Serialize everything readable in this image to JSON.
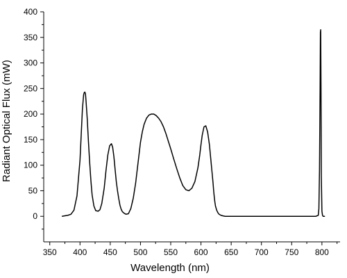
{
  "chart_data": {
    "type": "line",
    "title": "",
    "xlabel": "Wavelength (nm)",
    "ylabel": "Radiant Optical Flux (mW)",
    "xlim": [
      340,
      830
    ],
    "ylim": [
      -50,
      400
    ],
    "xticks": [
      350,
      400,
      450,
      500,
      550,
      600,
      650,
      700,
      750,
      800
    ],
    "yticks": [
      0,
      50,
      100,
      150,
      200,
      250,
      300,
      350,
      400
    ],
    "grid": false,
    "legend": "none",
    "line_color": "#000000",
    "series": [
      {
        "x": [
          370,
          375,
          380,
          385,
          390,
          395,
          400,
          402,
          404,
          406,
          407,
          408,
          409,
          410,
          412,
          414,
          416,
          418,
          420,
          423,
          426,
          430,
          433,
          436,
          440,
          443,
          446,
          449,
          452,
          454,
          456,
          457,
          458,
          459,
          460,
          462,
          464,
          466,
          468,
          470,
          473,
          476,
          480,
          484,
          488,
          492,
          495,
          498,
          500,
          503,
          506,
          510,
          514,
          518,
          522,
          526,
          530,
          534,
          538,
          542,
          546,
          550,
          555,
          560,
          565,
          570,
          575,
          580,
          585,
          590,
          595,
          598,
          600,
          602,
          605,
          608,
          611,
          614,
          616,
          618,
          620,
          621,
          622,
          623,
          624,
          626,
          628,
          630,
          633,
          636,
          640,
          645,
          650,
          655,
          660,
          670,
          680,
          700,
          720,
          740,
          760,
          780,
          790,
          794,
          795,
          796,
          797,
          797.5,
          798,
          798.5,
          799,
          800,
          801,
          802,
          805
        ],
        "y": [
          0,
          1,
          2,
          4,
          12,
          40,
          110,
          160,
          210,
          238,
          242,
          243,
          240,
          225,
          190,
          145,
          105,
          70,
          42,
          20,
          11,
          10,
          13,
          25,
          55,
          90,
          120,
          138,
          142,
          135,
          117,
          105,
          92,
          80,
          68,
          50,
          35,
          22,
          14,
          9,
          6,
          4,
          5,
          15,
          35,
          65,
          95,
          125,
          145,
          165,
          180,
          192,
          198,
          200,
          200,
          197,
          192,
          185,
          175,
          162,
          147,
          132,
          112,
          93,
          75,
          60,
          52,
          50,
          55,
          68,
          95,
          120,
          140,
          158,
          175,
          177,
          165,
          140,
          115,
          90,
          65,
          50,
          38,
          28,
          20,
          12,
          7,
          4,
          2,
          1,
          0,
          0,
          0,
          0,
          0,
          0,
          0,
          0,
          0,
          0,
          0,
          0,
          0,
          2,
          15,
          90,
          250,
          360,
          365,
          250,
          80,
          10,
          2,
          0,
          0
        ]
      }
    ]
  }
}
